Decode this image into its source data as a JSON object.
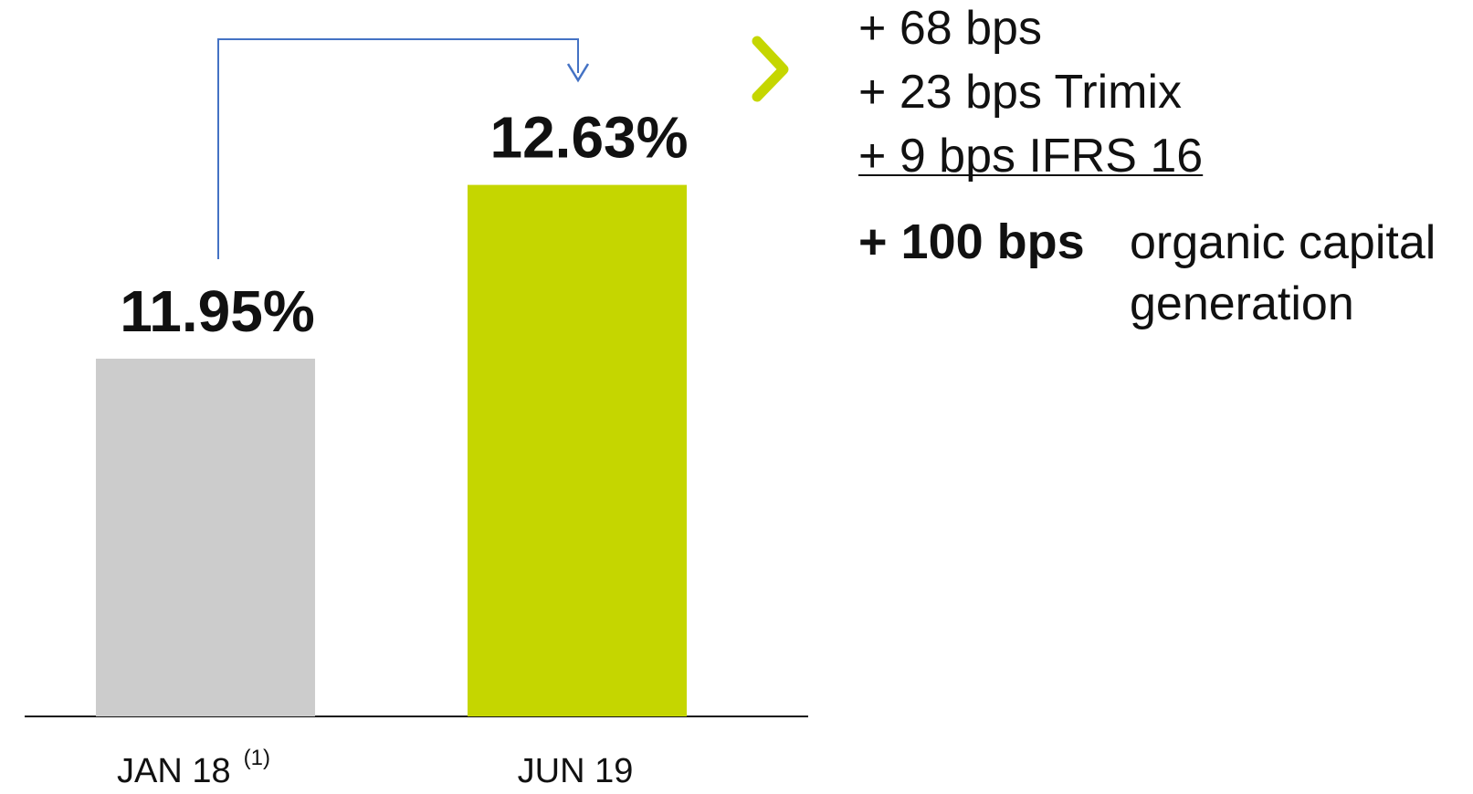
{
  "chart_data": {
    "type": "bar",
    "categories": [
      "JAN 18",
      "JUN 19"
    ],
    "footnote": "(1)",
    "values": [
      11.95,
      12.63
    ],
    "value_labels": [
      "11.95%",
      "12.63%"
    ],
    "colors": [
      "#cccccc",
      "#c5d600"
    ],
    "ylim": [
      10.55,
      13.2
    ],
    "annotations": {
      "items": [
        "+ 68 bps",
        "+ 23 bps Trimix",
        "+ 9 bps IFRS 16"
      ],
      "total": "+ 100 bps",
      "total_text": [
        "organic capital",
        "generation"
      ]
    }
  }
}
